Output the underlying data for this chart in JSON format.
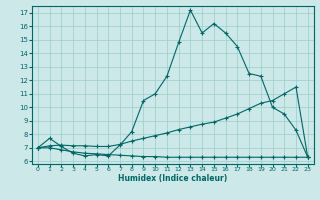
{
  "xlabel": "Humidex (Indice chaleur)",
  "ylabel": "",
  "bg_color": "#cce8e8",
  "line_color": "#006666",
  "grid_color": "#99cccc",
  "xlim": [
    -0.5,
    23.5
  ],
  "ylim": [
    5.8,
    17.5
  ],
  "xticks": [
    0,
    1,
    2,
    3,
    4,
    5,
    6,
    7,
    8,
    9,
    10,
    11,
    12,
    13,
    14,
    15,
    16,
    17,
    18,
    19,
    20,
    21,
    22,
    23
  ],
  "yticks": [
    6,
    7,
    8,
    9,
    10,
    11,
    12,
    13,
    14,
    15,
    16,
    17
  ],
  "line1_x": [
    0,
    1,
    2,
    3,
    4,
    5,
    6,
    7,
    8,
    9,
    10,
    11,
    12,
    13,
    14,
    15,
    16,
    17,
    18,
    19,
    20,
    21,
    22,
    23
  ],
  "line1_y": [
    7.0,
    7.7,
    7.1,
    6.6,
    6.4,
    6.5,
    6.4,
    7.2,
    8.2,
    10.5,
    11.0,
    12.3,
    14.8,
    17.2,
    15.5,
    16.2,
    15.5,
    14.5,
    12.5,
    12.3,
    10.0,
    9.5,
    8.3,
    6.3
  ],
  "line2_x": [
    0,
    1,
    2,
    3,
    4,
    5,
    6,
    7,
    8,
    9,
    10,
    11,
    12,
    13,
    14,
    15,
    16,
    17,
    18,
    19,
    20,
    21,
    22,
    23
  ],
  "line2_y": [
    7.0,
    7.15,
    7.2,
    7.15,
    7.15,
    7.1,
    7.1,
    7.25,
    7.5,
    7.7,
    7.9,
    8.1,
    8.35,
    8.55,
    8.75,
    8.9,
    9.2,
    9.5,
    9.9,
    10.3,
    10.5,
    11.0,
    11.5,
    6.3
  ],
  "line3_x": [
    0,
    1,
    2,
    3,
    4,
    5,
    6,
    7,
    8,
    9,
    10,
    11,
    12,
    13,
    14,
    15,
    16,
    17,
    18,
    19,
    20,
    21,
    22,
    23
  ],
  "line3_y": [
    7.0,
    7.0,
    6.85,
    6.7,
    6.6,
    6.55,
    6.5,
    6.45,
    6.4,
    6.35,
    6.35,
    6.3,
    6.3,
    6.3,
    6.3,
    6.3,
    6.3,
    6.3,
    6.3,
    6.3,
    6.3,
    6.3,
    6.3,
    6.3
  ],
  "marker": "+"
}
